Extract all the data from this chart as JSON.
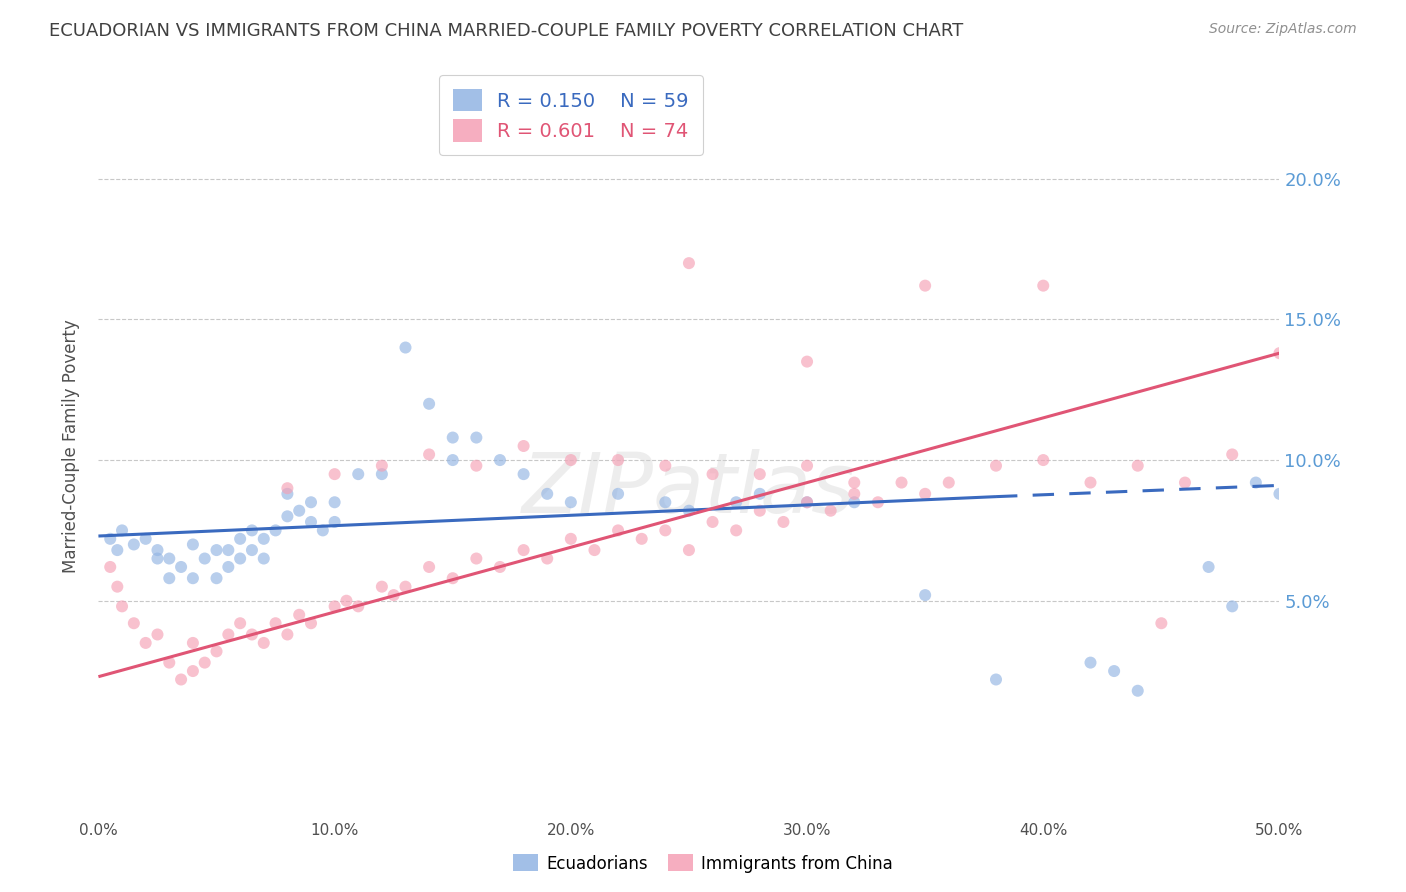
{
  "title": "ECUADORIAN VS IMMIGRANTS FROM CHINA MARRIED-COUPLE FAMILY POVERTY CORRELATION CHART",
  "source": "Source: ZipAtlas.com",
  "ylabel": "Married-Couple Family Poverty",
  "xlim": [
    0.0,
    0.5
  ],
  "ylim": [
    -0.025,
    0.235
  ],
  "xtick_labels": [
    "0.0%",
    "10.0%",
    "20.0%",
    "30.0%",
    "40.0%",
    "50.0%"
  ],
  "legend1_r": "R = 0.150",
  "legend1_n": "N = 59",
  "legend2_r": "R = 0.601",
  "legend2_n": "N = 74",
  "blue_color": "#92b4e3",
  "pink_color": "#f5a0b5",
  "blue_line_color": "#3a6abf",
  "pink_line_color": "#e05575",
  "axis_label_color": "#5b9bd5",
  "watermark": "ZIPatlas",
  "background_color": "#ffffff",
  "grid_color": "#c8c8c8",
  "title_color": "#404040",
  "scatter_alpha": 0.65,
  "scatter_size": 75,
  "blue_scatter_x": [
    0.005,
    0.008,
    0.01,
    0.015,
    0.02,
    0.025,
    0.025,
    0.03,
    0.03,
    0.035,
    0.04,
    0.04,
    0.045,
    0.05,
    0.05,
    0.055,
    0.055,
    0.06,
    0.06,
    0.065,
    0.065,
    0.07,
    0.07,
    0.075,
    0.08,
    0.08,
    0.085,
    0.09,
    0.09,
    0.095,
    0.1,
    0.1,
    0.11,
    0.12,
    0.13,
    0.14,
    0.15,
    0.15,
    0.16,
    0.17,
    0.18,
    0.19,
    0.2,
    0.22,
    0.24,
    0.25,
    0.27,
    0.28,
    0.3,
    0.32,
    0.35,
    0.38,
    0.42,
    0.43,
    0.44,
    0.47,
    0.48,
    0.49,
    0.5
  ],
  "blue_scatter_y": [
    0.072,
    0.068,
    0.075,
    0.07,
    0.072,
    0.065,
    0.068,
    0.058,
    0.065,
    0.062,
    0.058,
    0.07,
    0.065,
    0.058,
    0.068,
    0.062,
    0.068,
    0.065,
    0.072,
    0.068,
    0.075,
    0.065,
    0.072,
    0.075,
    0.08,
    0.088,
    0.082,
    0.078,
    0.085,
    0.075,
    0.078,
    0.085,
    0.095,
    0.095,
    0.14,
    0.12,
    0.1,
    0.108,
    0.108,
    0.1,
    0.095,
    0.088,
    0.085,
    0.088,
    0.085,
    0.082,
    0.085,
    0.088,
    0.085,
    0.085,
    0.052,
    0.022,
    0.028,
    0.025,
    0.018,
    0.062,
    0.048,
    0.092,
    0.088
  ],
  "pink_scatter_x": [
    0.005,
    0.008,
    0.01,
    0.015,
    0.02,
    0.025,
    0.03,
    0.035,
    0.04,
    0.04,
    0.045,
    0.05,
    0.055,
    0.06,
    0.065,
    0.07,
    0.075,
    0.08,
    0.085,
    0.09,
    0.1,
    0.105,
    0.11,
    0.12,
    0.125,
    0.13,
    0.14,
    0.15,
    0.16,
    0.17,
    0.18,
    0.19,
    0.2,
    0.21,
    0.22,
    0.23,
    0.24,
    0.25,
    0.26,
    0.27,
    0.28,
    0.29,
    0.3,
    0.31,
    0.32,
    0.33,
    0.34,
    0.35,
    0.36,
    0.38,
    0.4,
    0.42,
    0.44,
    0.46,
    0.48,
    0.5,
    0.28,
    0.3,
    0.32,
    0.22,
    0.24,
    0.26,
    0.08,
    0.1,
    0.12,
    0.14,
    0.16,
    0.18,
    0.2,
    0.25,
    0.3,
    0.35,
    0.4,
    0.45
  ],
  "pink_scatter_y": [
    0.062,
    0.055,
    0.048,
    0.042,
    0.035,
    0.038,
    0.028,
    0.022,
    0.025,
    0.035,
    0.028,
    0.032,
    0.038,
    0.042,
    0.038,
    0.035,
    0.042,
    0.038,
    0.045,
    0.042,
    0.048,
    0.05,
    0.048,
    0.055,
    0.052,
    0.055,
    0.062,
    0.058,
    0.065,
    0.062,
    0.068,
    0.065,
    0.072,
    0.068,
    0.075,
    0.072,
    0.075,
    0.068,
    0.078,
    0.075,
    0.082,
    0.078,
    0.085,
    0.082,
    0.088,
    0.085,
    0.092,
    0.088,
    0.092,
    0.098,
    0.1,
    0.092,
    0.098,
    0.092,
    0.102,
    0.138,
    0.095,
    0.098,
    0.092,
    0.1,
    0.098,
    0.095,
    0.09,
    0.095,
    0.098,
    0.102,
    0.098,
    0.105,
    0.1,
    0.17,
    0.135,
    0.162,
    0.162,
    0.042
  ],
  "blue_line_y_start": 0.073,
  "blue_line_y_at_38": 0.087,
  "blue_line_y_end": 0.091,
  "pink_line_y_start": 0.023,
  "pink_line_y_end": 0.138
}
